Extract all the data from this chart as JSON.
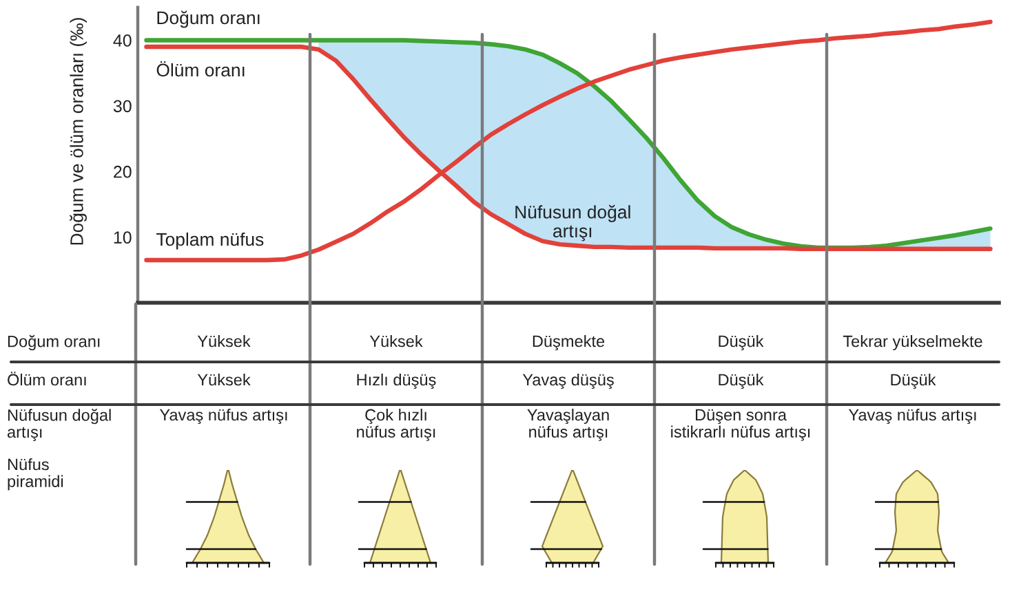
{
  "chart_data": [
    {
      "type": "line",
      "ylabel": "Doğum ve ölüm oranları (‰)",
      "ylim": [
        0,
        45
      ],
      "yticks": [
        10,
        20,
        30,
        40
      ],
      "tick_labels": "y",
      "grid": false,
      "legend": false,
      "categories": [
        null,
        null,
        null,
        null,
        null,
        null,
        null,
        null,
        null,
        null,
        null,
        null,
        null,
        null,
        null,
        null,
        null,
        null,
        null,
        null,
        null,
        null,
        null,
        null,
        null,
        null,
        null,
        null,
        null,
        null,
        null,
        null,
        null,
        null,
        null,
        null,
        null,
        null,
        null,
        null,
        null,
        null,
        null,
        null,
        null,
        null,
        null,
        null,
        null,
        null
      ],
      "series": [
        {
          "color": "#bfe2f5",
          "values": [
            null,
            null,
            null,
            null,
            null,
            null,
            null,
            null,
            null,
            null,
            null,
            null,
            null,
            null,
            null,
            null,
            null,
            null,
            null,
            null,
            null,
            null,
            null,
            null,
            null,
            null,
            null,
            null,
            null,
            null,
            null,
            null,
            null,
            null,
            null,
            null,
            null,
            null,
            null,
            null,
            null,
            null,
            null,
            null,
            null,
            null,
            null,
            null,
            null,
            null
          ],
          "lower": [
            null,
            null,
            null,
            null,
            null,
            null,
            null,
            null,
            null,
            null,
            38.6,
            36.9,
            34.1,
            31,
            28,
            25.1,
            22.5,
            20.1,
            17.8,
            15.4,
            13.5,
            12,
            10.5,
            9.4,
            8.9,
            8.7,
            8.5,
            8.5,
            8.4,
            8.4,
            8.4,
            8.4,
            8.4,
            8.3,
            8.3,
            8.3,
            8.3,
            8.3,
            8.2,
            8.2,
            8.2,
            8.2,
            8.2,
            8.2,
            8.2,
            8.2,
            8.2,
            8.2,
            8.2,
            8.2
          ],
          "upper": [
            null,
            null,
            null,
            null,
            null,
            null,
            null,
            null,
            null,
            null,
            40,
            40,
            40,
            40,
            40,
            40,
            39.9,
            39.8,
            39.7,
            39.6,
            39.4,
            39.1,
            38.6,
            37.8,
            36.5,
            35,
            33,
            30.7,
            28,
            25.2,
            22.1,
            18.7,
            15.6,
            13.2,
            11.5,
            10.4,
            9.6,
            9,
            8.6,
            8.4,
            8.4,
            8.4,
            8.5,
            8.7,
            9.1,
            9.5,
            9.9,
            10.3,
            10.8,
            11.3
          ]
        },
        {
          "name": "Doğum oranı",
          "color": "#3fa535",
          "values": [
            40,
            40,
            40,
            40,
            40,
            40,
            40,
            40,
            40,
            40,
            40,
            40,
            40,
            40,
            40,
            40,
            39.9,
            39.8,
            39.7,
            39.6,
            39.4,
            39.1,
            38.6,
            37.8,
            36.5,
            35,
            33,
            30.7,
            28,
            25.2,
            22.1,
            18.7,
            15.6,
            13.2,
            11.5,
            10.4,
            9.6,
            9,
            8.6,
            8.4,
            8.4,
            8.4,
            8.5,
            8.7,
            9.1,
            9.5,
            9.9,
            10.3,
            10.8,
            11.3
          ]
        },
        {
          "name": "Ölüm oranı",
          "color": "#e2413a",
          "values": [
            39,
            39,
            39,
            39,
            39,
            39,
            39,
            39,
            39,
            39,
            38.6,
            36.9,
            34.1,
            31,
            28,
            25.1,
            22.5,
            20.1,
            17.8,
            15.4,
            13.5,
            12,
            10.5,
            9.4,
            8.9,
            8.7,
            8.5,
            8.5,
            8.4,
            8.4,
            8.4,
            8.4,
            8.4,
            8.3,
            8.3,
            8.3,
            8.3,
            8.3,
            8.2,
            8.2,
            8.2,
            8.2,
            8.2,
            8.2,
            8.2,
            8.2,
            8.2,
            8.2,
            8.2,
            8.2
          ]
        },
        {
          "name": "Toplam nüfus",
          "color": "#e2413a",
          "values": [
            6.5,
            6.5,
            6.5,
            6.5,
            6.5,
            6.5,
            6.5,
            6.5,
            6.6,
            7.2,
            8.1,
            9.3,
            10.5,
            12.1,
            13.9,
            15.5,
            17.4,
            19.5,
            21.5,
            23.6,
            25.6,
            27.2,
            28.7,
            30.1,
            31.4,
            32.6,
            33.7,
            34.6,
            35.5,
            36.2,
            36.9,
            37.4,
            37.8,
            38.2,
            38.6,
            38.9,
            39.2,
            39.5,
            39.8,
            40,
            40.3,
            40.5,
            40.7,
            41,
            41.2,
            41.5,
            41.7,
            42.1,
            42.4,
            42.8
          ]
        }
      ],
      "annotations": [
        "Nüfusun doğal\nartışı"
      ]
    },
    {
      "type": "other",
      "y_categories": [
        "Doğum oranı",
        "Ölüm oranı",
        "Nüfusun doğal\nartışı",
        "Nüfus\npiramidi"
      ],
      "cell_labels": [
        [
          "Yüksek",
          "Yüksek",
          "Düşmekte",
          "Düşük",
          "Tekrar yükselmekte"
        ],
        [
          "Yüksek",
          "Hızlı düşüş",
          "Yavaş düşüş",
          "Düşük",
          "Düşük"
        ],
        [
          "Yavaş nüfus artışı",
          "Çok hızlı\nnüfus artışı",
          "Yavaşlayan\nnüfus artışı",
          "Düşen sonra\nistikrarlı nüfus artışı",
          "Yavaş nüfus artışı"
        ],
        [
          null,
          null,
          null,
          null,
          null
        ]
      ]
    }
  ]
}
